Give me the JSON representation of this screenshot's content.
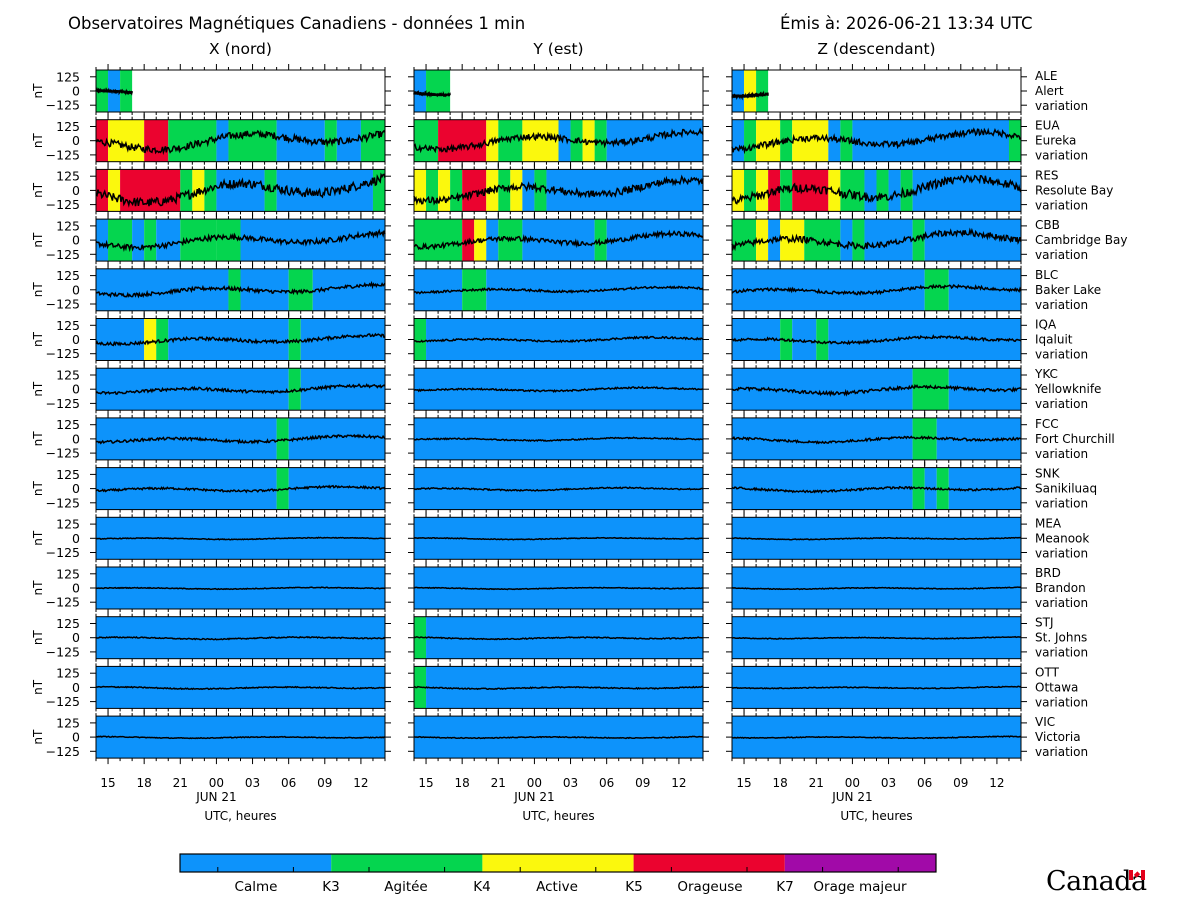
{
  "header": {
    "title": "Observatoires Magnétiques Canadiens - données 1 min",
    "issued": "Émis à: 2026-06-21 13:34 UTC"
  },
  "colors": {
    "calme": "#0d93fb",
    "agitee": "#05d54f",
    "active": "#fbf80d",
    "orageuse": "#eb032f",
    "orage_majeur": "#a10aa8",
    "trace": "#000000"
  },
  "legend": {
    "bands": [
      "Calme",
      "Agitée",
      "Active",
      "Orageuse",
      "Orage majeur"
    ],
    "thresholds": [
      "K3",
      "K4",
      "K5",
      "K7"
    ]
  },
  "chart_data": {
    "type": "line",
    "columns": [
      "X (nord)",
      "Y (est)",
      "Z (descendant)"
    ],
    "ylabel": "nT",
    "y_ticks": [
      "125",
      "0",
      "−125"
    ],
    "ylim": [
      -250,
      250
    ],
    "x_ticks": [
      "15",
      "18",
      "21",
      "00",
      "03",
      "06",
      "09",
      "12"
    ],
    "x_date_label": "JUN 21",
    "xlabel": "UTC, heures",
    "x_range_hours": [
      -10,
      14
    ],
    "stations": [
      {
        "code": "ALE",
        "name": "Alert",
        "kind": "variation"
      },
      {
        "code": "EUA",
        "name": "Eureka",
        "kind": "variation"
      },
      {
        "code": "RES",
        "name": "Resolute Bay",
        "kind": "variation"
      },
      {
        "code": "CBB",
        "name": "Cambridge Bay",
        "kind": "variation"
      },
      {
        "code": "BLC",
        "name": "Baker Lake",
        "kind": "variation"
      },
      {
        "code": "IQA",
        "name": "Iqaluit",
        "kind": "variation"
      },
      {
        "code": "YKC",
        "name": "Yellowknife",
        "kind": "variation"
      },
      {
        "code": "FCC",
        "name": "Fort Churchill",
        "kind": "variation"
      },
      {
        "code": "SNK",
        "name": "Sanikiluaq",
        "kind": "variation"
      },
      {
        "code": "MEA",
        "name": "Meanook",
        "kind": "variation"
      },
      {
        "code": "BRD",
        "name": "Brandon",
        "kind": "variation"
      },
      {
        "code": "STJ",
        "name": "St. Johns",
        "kind": "variation"
      },
      {
        "code": "OTT",
        "name": "Ottawa",
        "kind": "variation"
      },
      {
        "code": "VIC",
        "name": "Victoria",
        "kind": "variation"
      }
    ],
    "activity_segments": [
      [
        [
          [
            -10,
            -9,
            "agitee"
          ],
          [
            -9,
            -8,
            "calme"
          ],
          [
            -8,
            -7,
            "agitee"
          ]
        ],
        [
          [
            -10,
            -9,
            "orageuse"
          ],
          [
            -9,
            -6,
            "active"
          ],
          [
            -6,
            -4,
            "orageuse"
          ],
          [
            -4,
            0,
            "agitee"
          ],
          [
            0,
            1,
            "calme"
          ],
          [
            1,
            5,
            "agitee"
          ],
          [
            5,
            9,
            "calme"
          ],
          [
            9,
            10,
            "agitee"
          ],
          [
            10,
            12,
            "calme"
          ],
          [
            12,
            14,
            "agitee"
          ]
        ],
        [
          [
            -10,
            -9,
            "orageuse"
          ],
          [
            -9,
            -8,
            "active"
          ],
          [
            -8,
            -3,
            "orageuse"
          ],
          [
            -3,
            -2,
            "agitee"
          ],
          [
            -2,
            -1,
            "active"
          ],
          [
            -1,
            0,
            "agitee"
          ],
          [
            0,
            4,
            "calme"
          ],
          [
            4,
            5,
            "agitee"
          ],
          [
            5,
            13,
            "calme"
          ],
          [
            13,
            14,
            "agitee"
          ]
        ],
        [
          [
            -10,
            -9,
            "calme"
          ],
          [
            -9,
            -7,
            "agitee"
          ],
          [
            -7,
            -6,
            "calme"
          ],
          [
            -6,
            -5,
            "agitee"
          ],
          [
            -5,
            -3,
            "calme"
          ],
          [
            -3,
            0,
            "agitee"
          ],
          [
            0,
            2,
            "agitee"
          ],
          [
            2,
            14,
            "calme"
          ]
        ],
        [
          [
            -10,
            1,
            "calme"
          ],
          [
            1,
            2,
            "agitee"
          ],
          [
            2,
            6,
            "calme"
          ],
          [
            6,
            8,
            "agitee"
          ],
          [
            8,
            14,
            "calme"
          ]
        ],
        [
          [
            -10,
            -6,
            "calme"
          ],
          [
            -6,
            -5,
            "active"
          ],
          [
            -5,
            -4,
            "agitee"
          ],
          [
            -4,
            6,
            "calme"
          ],
          [
            6,
            7,
            "agitee"
          ],
          [
            7,
            14,
            "calme"
          ]
        ],
        [
          [
            -10,
            6,
            "calme"
          ],
          [
            6,
            7,
            "agitee"
          ],
          [
            7,
            14,
            "calme"
          ]
        ],
        [
          [
            -10,
            5,
            "calme"
          ],
          [
            5,
            6,
            "agitee"
          ],
          [
            6,
            14,
            "calme"
          ]
        ],
        [
          [
            -10,
            5,
            "calme"
          ],
          [
            5,
            6,
            "agitee"
          ],
          [
            6,
            14,
            "calme"
          ]
        ],
        [
          [
            -10,
            14,
            "calme"
          ]
        ],
        [
          [
            -10,
            14,
            "calme"
          ]
        ],
        [
          [
            -10,
            14,
            "calme"
          ]
        ],
        [
          [
            -10,
            14,
            "calme"
          ]
        ],
        [
          [
            -10,
            14,
            "calme"
          ]
        ]
      ],
      [
        [
          [
            -10,
            -9,
            "calme"
          ],
          [
            -9,
            -7,
            "agitee"
          ]
        ],
        [
          [
            -10,
            -8,
            "agitee"
          ],
          [
            -8,
            -4,
            "orageuse"
          ],
          [
            -4,
            -3,
            "active"
          ],
          [
            -3,
            -1,
            "agitee"
          ],
          [
            -1,
            2,
            "active"
          ],
          [
            2,
            3,
            "calme"
          ],
          [
            3,
            4,
            "agitee"
          ],
          [
            4,
            5,
            "active"
          ],
          [
            5,
            6,
            "agitee"
          ],
          [
            6,
            14,
            "calme"
          ]
        ],
        [
          [
            -10,
            -9,
            "active"
          ],
          [
            -9,
            -8,
            "agitee"
          ],
          [
            -8,
            -7,
            "active"
          ],
          [
            -7,
            -6,
            "agitee"
          ],
          [
            -6,
            -4,
            "orageuse"
          ],
          [
            -4,
            -3,
            "active"
          ],
          [
            -3,
            -2,
            "agitee"
          ],
          [
            -2,
            -1,
            "active"
          ],
          [
            -1,
            0,
            "calme"
          ],
          [
            0,
            1,
            "agitee"
          ],
          [
            1,
            14,
            "calme"
          ]
        ],
        [
          [
            -10,
            -6,
            "agitee"
          ],
          [
            -6,
            -5,
            "orageuse"
          ],
          [
            -5,
            -4,
            "active"
          ],
          [
            -4,
            -3,
            "calme"
          ],
          [
            -3,
            -1,
            "agitee"
          ],
          [
            -1,
            5,
            "calme"
          ],
          [
            5,
            6,
            "agitee"
          ],
          [
            6,
            14,
            "calme"
          ]
        ],
        [
          [
            -10,
            -6,
            "calme"
          ],
          [
            -6,
            -4,
            "agitee"
          ],
          [
            -4,
            14,
            "calme"
          ]
        ],
        [
          [
            -10,
            -9,
            "agitee"
          ],
          [
            -9,
            14,
            "calme"
          ]
        ],
        [
          [
            -10,
            14,
            "calme"
          ]
        ],
        [
          [
            -10,
            14,
            "calme"
          ]
        ],
        [
          [
            -10,
            14,
            "calme"
          ]
        ],
        [
          [
            -10,
            14,
            "calme"
          ]
        ],
        [
          [
            -10,
            14,
            "calme"
          ]
        ],
        [
          [
            -10,
            -9,
            "agitee"
          ],
          [
            -9,
            14,
            "calme"
          ]
        ],
        [
          [
            -10,
            -9,
            "agitee"
          ],
          [
            -9,
            14,
            "calme"
          ]
        ],
        [
          [
            -10,
            14,
            "calme"
          ]
        ]
      ],
      [
        [
          [
            -10,
            -9,
            "calme"
          ],
          [
            -9,
            -8,
            "active"
          ],
          [
            -8,
            -7,
            "agitee"
          ]
        ],
        [
          [
            -10,
            -9,
            "calme"
          ],
          [
            -9,
            -8,
            "agitee"
          ],
          [
            -8,
            -6,
            "active"
          ],
          [
            -6,
            -5,
            "agitee"
          ],
          [
            -5,
            -2,
            "active"
          ],
          [
            -2,
            -1,
            "calme"
          ],
          [
            -1,
            0,
            "agitee"
          ],
          [
            0,
            14,
            "calme"
          ],
          [
            13,
            14,
            "agitee"
          ]
        ],
        [
          [
            -10,
            -9,
            "active"
          ],
          [
            -9,
            -8,
            "agitee"
          ],
          [
            -8,
            -7,
            "active"
          ],
          [
            -7,
            -6,
            "orageuse"
          ],
          [
            -6,
            -5,
            "agitee"
          ],
          [
            -5,
            -2,
            "orageuse"
          ],
          [
            -2,
            -1,
            "active"
          ],
          [
            -1,
            1,
            "agitee"
          ],
          [
            1,
            2,
            "calme"
          ],
          [
            2,
            3,
            "agitee"
          ],
          [
            3,
            4,
            "calme"
          ],
          [
            4,
            5,
            "agitee"
          ],
          [
            5,
            14,
            "calme"
          ]
        ],
        [
          [
            -10,
            -8,
            "agitee"
          ],
          [
            -8,
            -7,
            "active"
          ],
          [
            -7,
            -6,
            "calme"
          ],
          [
            -6,
            -4,
            "active"
          ],
          [
            -4,
            -1,
            "agitee"
          ],
          [
            -1,
            0,
            "calme"
          ],
          [
            0,
            1,
            "agitee"
          ],
          [
            1,
            5,
            "calme"
          ],
          [
            5,
            6,
            "agitee"
          ],
          [
            6,
            14,
            "calme"
          ]
        ],
        [
          [
            -10,
            6,
            "calme"
          ],
          [
            6,
            8,
            "agitee"
          ],
          [
            8,
            14,
            "calme"
          ]
        ],
        [
          [
            -10,
            -6,
            "calme"
          ],
          [
            -6,
            -5,
            "agitee"
          ],
          [
            -5,
            -3,
            "calme"
          ],
          [
            -3,
            -2,
            "agitee"
          ],
          [
            -2,
            14,
            "calme"
          ]
        ],
        [
          [
            -10,
            5,
            "calme"
          ],
          [
            5,
            8,
            "agitee"
          ],
          [
            8,
            14,
            "calme"
          ]
        ],
        [
          [
            -10,
            5,
            "calme"
          ],
          [
            5,
            7,
            "agitee"
          ],
          [
            7,
            14,
            "calme"
          ]
        ],
        [
          [
            -10,
            5,
            "calme"
          ],
          [
            5,
            6,
            "agitee"
          ],
          [
            6,
            7,
            "calme"
          ],
          [
            7,
            8,
            "agitee"
          ],
          [
            8,
            14,
            "calme"
          ]
        ],
        [
          [
            -10,
            14,
            "calme"
          ]
        ],
        [
          [
            -10,
            14,
            "calme"
          ]
        ],
        [
          [
            -10,
            14,
            "calme"
          ]
        ],
        [
          [
            -10,
            14,
            "calme"
          ]
        ],
        [
          [
            -10,
            14,
            "calme"
          ]
        ]
      ]
    ],
    "station_data_end_hours": [
      -7,
      14,
      14,
      14,
      14,
      14,
      14,
      14,
      14,
      14,
      14,
      14,
      14,
      14
    ],
    "trace_amplitude_nt": [
      [
        60,
        140,
        180,
        100,
        70,
        60,
        55,
        50,
        40,
        15,
        15,
        20,
        20,
        15
      ],
      [
        60,
        120,
        140,
        90,
        40,
        35,
        30,
        25,
        25,
        15,
        15,
        20,
        20,
        15
      ],
      [
        70,
        120,
        170,
        120,
        60,
        50,
        60,
        45,
        40,
        15,
        15,
        15,
        15,
        15
      ]
    ]
  }
}
